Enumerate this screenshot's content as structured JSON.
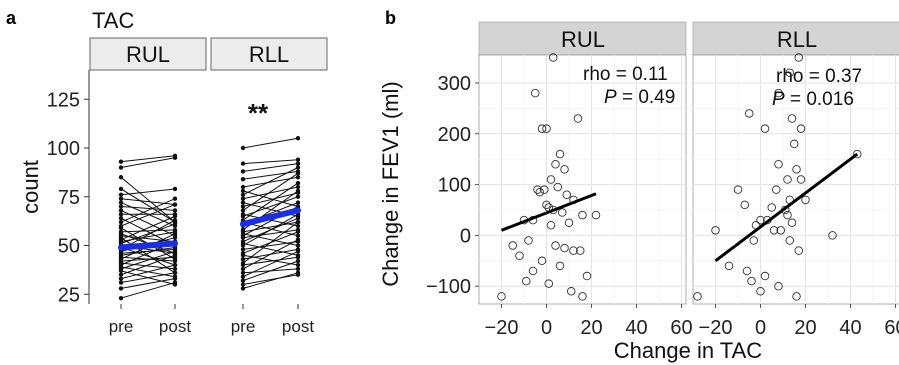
{
  "figure": {
    "panel_a_label": "a",
    "panel_b_label": "b",
    "panel_a_title": "TAC"
  },
  "chart_data": [
    {
      "type": "line",
      "panel": "a",
      "title": "TAC",
      "ylabel": "count",
      "xlabel": "",
      "ylim": [
        20,
        140
      ],
      "yticks": [
        25,
        50,
        75,
        100,
        125
      ],
      "x_categories": [
        "pre",
        "post"
      ],
      "facets": [
        "RUL",
        "RLL"
      ],
      "significance": {
        "facet": "RLL",
        "label": "**"
      },
      "mean_color": "#1a2ee8",
      "pairs": {
        "RUL": [
          [
            93,
            96
          ],
          [
            90,
            95
          ],
          [
            85,
            62
          ],
          [
            79,
            62
          ],
          [
            76,
            79
          ],
          [
            74,
            71
          ],
          [
            72,
            60
          ],
          [
            70,
            68
          ],
          [
            68,
            55
          ],
          [
            66,
            66
          ],
          [
            64,
            50
          ],
          [
            62,
            74
          ],
          [
            60,
            71
          ],
          [
            59,
            43
          ],
          [
            57,
            58
          ],
          [
            56,
            46
          ],
          [
            55,
            52
          ],
          [
            54,
            36
          ],
          [
            53,
            65
          ],
          [
            52,
            57
          ],
          [
            51,
            61
          ],
          [
            50,
            46
          ],
          [
            49,
            40
          ],
          [
            48,
            63
          ],
          [
            47,
            54
          ],
          [
            46,
            48
          ],
          [
            45,
            49
          ],
          [
            44,
            42
          ],
          [
            43,
            56
          ],
          [
            42,
            44
          ],
          [
            41,
            38
          ],
          [
            40,
            52
          ],
          [
            39,
            34
          ],
          [
            38,
            47
          ],
          [
            37,
            30
          ],
          [
            35,
            45
          ],
          [
            33,
            40
          ],
          [
            31,
            36
          ],
          [
            28,
            33
          ],
          [
            23,
            31
          ]
        ],
        "RLL": [
          [
            100,
            105
          ],
          [
            92,
            94
          ],
          [
            88,
            92
          ],
          [
            84,
            88
          ],
          [
            80,
            85
          ],
          [
            78,
            70
          ],
          [
            76,
            90
          ],
          [
            74,
            80
          ],
          [
            72,
            65
          ],
          [
            70,
            77
          ],
          [
            68,
            87
          ],
          [
            66,
            60
          ],
          [
            65,
            75
          ],
          [
            63,
            82
          ],
          [
            62,
            55
          ],
          [
            61,
            72
          ],
          [
            60,
            68
          ],
          [
            58,
            78
          ],
          [
            57,
            62
          ],
          [
            56,
            50
          ],
          [
            55,
            70
          ],
          [
            54,
            58
          ],
          [
            52,
            64
          ],
          [
            51,
            45
          ],
          [
            50,
            66
          ],
          [
            48,
            52
          ],
          [
            46,
            57
          ],
          [
            45,
            40
          ],
          [
            43,
            48
          ],
          [
            41,
            62
          ],
          [
            40,
            44
          ],
          [
            38,
            53
          ],
          [
            36,
            38
          ],
          [
            34,
            47
          ],
          [
            32,
            42
          ],
          [
            30,
            35
          ],
          [
            28,
            36
          ]
        ]
      },
      "means": {
        "RUL": [
          49,
          51
        ],
        "RLL": [
          61,
          68
        ]
      }
    },
    {
      "type": "scatter",
      "panel": "b",
      "xlabel": "Change in TAC",
      "ylabel": "Change in FEV1 (ml)",
      "xlim": [
        -30,
        62
      ],
      "ylim": [
        -135,
        355
      ],
      "xticks": [
        -20,
        0,
        20,
        40,
        60
      ],
      "yticks": [
        -100,
        0,
        100,
        200,
        300
      ],
      "facets": [
        {
          "name": "RUL",
          "rho_text": "rho = 0.11",
          "p_label": "P",
          "p_value": " = 0.49",
          "fit": {
            "x": [
              -20,
              22
            ],
            "y": [
              10,
              82
            ]
          },
          "points": [
            [
              3,
              350
            ],
            [
              -5,
              280
            ],
            [
              -2,
              210
            ],
            [
              0,
              210
            ],
            [
              14,
              230
            ],
            [
              6,
              160
            ],
            [
              4,
              140
            ],
            [
              8,
              130
            ],
            [
              2,
              110
            ],
            [
              -4,
              90
            ],
            [
              -1,
              90
            ],
            [
              5,
              95
            ],
            [
              -3,
              85
            ],
            [
              9,
              80
            ],
            [
              12,
              70
            ],
            [
              0,
              60
            ],
            [
              1,
              55
            ],
            [
              3,
              50
            ],
            [
              7,
              45
            ],
            [
              16,
              40
            ],
            [
              22,
              40
            ],
            [
              -6,
              30
            ],
            [
              -10,
              30
            ],
            [
              10,
              25
            ],
            [
              2,
              20
            ],
            [
              -15,
              -20
            ],
            [
              -8,
              -10
            ],
            [
              4,
              -20
            ],
            [
              8,
              -25
            ],
            [
              12,
              -30
            ],
            [
              15,
              -30
            ],
            [
              -12,
              -40
            ],
            [
              -2,
              -50
            ],
            [
              6,
              -60
            ],
            [
              -6,
              -70
            ],
            [
              18,
              -80
            ],
            [
              -9,
              -90
            ],
            [
              1,
              -95
            ],
            [
              11,
              -110
            ],
            [
              16,
              -120
            ],
            [
              -20,
              -120
            ]
          ]
        },
        {
          "name": "RLL",
          "rho_text": "rho = 0.37",
          "p_label": "P",
          "p_value": " = 0.016",
          "fit": {
            "x": [
              -20,
              43
            ],
            "y": [
              -50,
              160
            ]
          },
          "points": [
            [
              17,
              350
            ],
            [
              13,
              320
            ],
            [
              -5,
              240
            ],
            [
              8,
              280
            ],
            [
              14,
              230
            ],
            [
              2,
              210
            ],
            [
              18,
              210
            ],
            [
              15,
              180
            ],
            [
              43,
              160
            ],
            [
              8,
              140
            ],
            [
              16,
              130
            ],
            [
              12,
              110
            ],
            [
              18,
              110
            ],
            [
              -10,
              90
            ],
            [
              7,
              90
            ],
            [
              13,
              70
            ],
            [
              20,
              70
            ],
            [
              -7,
              60
            ],
            [
              5,
              55
            ],
            [
              11,
              50
            ],
            [
              12,
              40
            ],
            [
              3,
              30
            ],
            [
              14,
              25
            ],
            [
              -2,
              20
            ],
            [
              0,
              30
            ],
            [
              6,
              10
            ],
            [
              -20,
              10
            ],
            [
              9,
              10
            ],
            [
              32,
              0
            ],
            [
              -3,
              -10
            ],
            [
              13,
              -10
            ],
            [
              17,
              -30
            ],
            [
              -14,
              -60
            ],
            [
              -6,
              -70
            ],
            [
              2,
              -80
            ],
            [
              -4,
              -90
            ],
            [
              8,
              -100
            ],
            [
              0,
              -110
            ],
            [
              -28,
              -120
            ],
            [
              16,
              -120
            ]
          ]
        }
      ]
    }
  ]
}
